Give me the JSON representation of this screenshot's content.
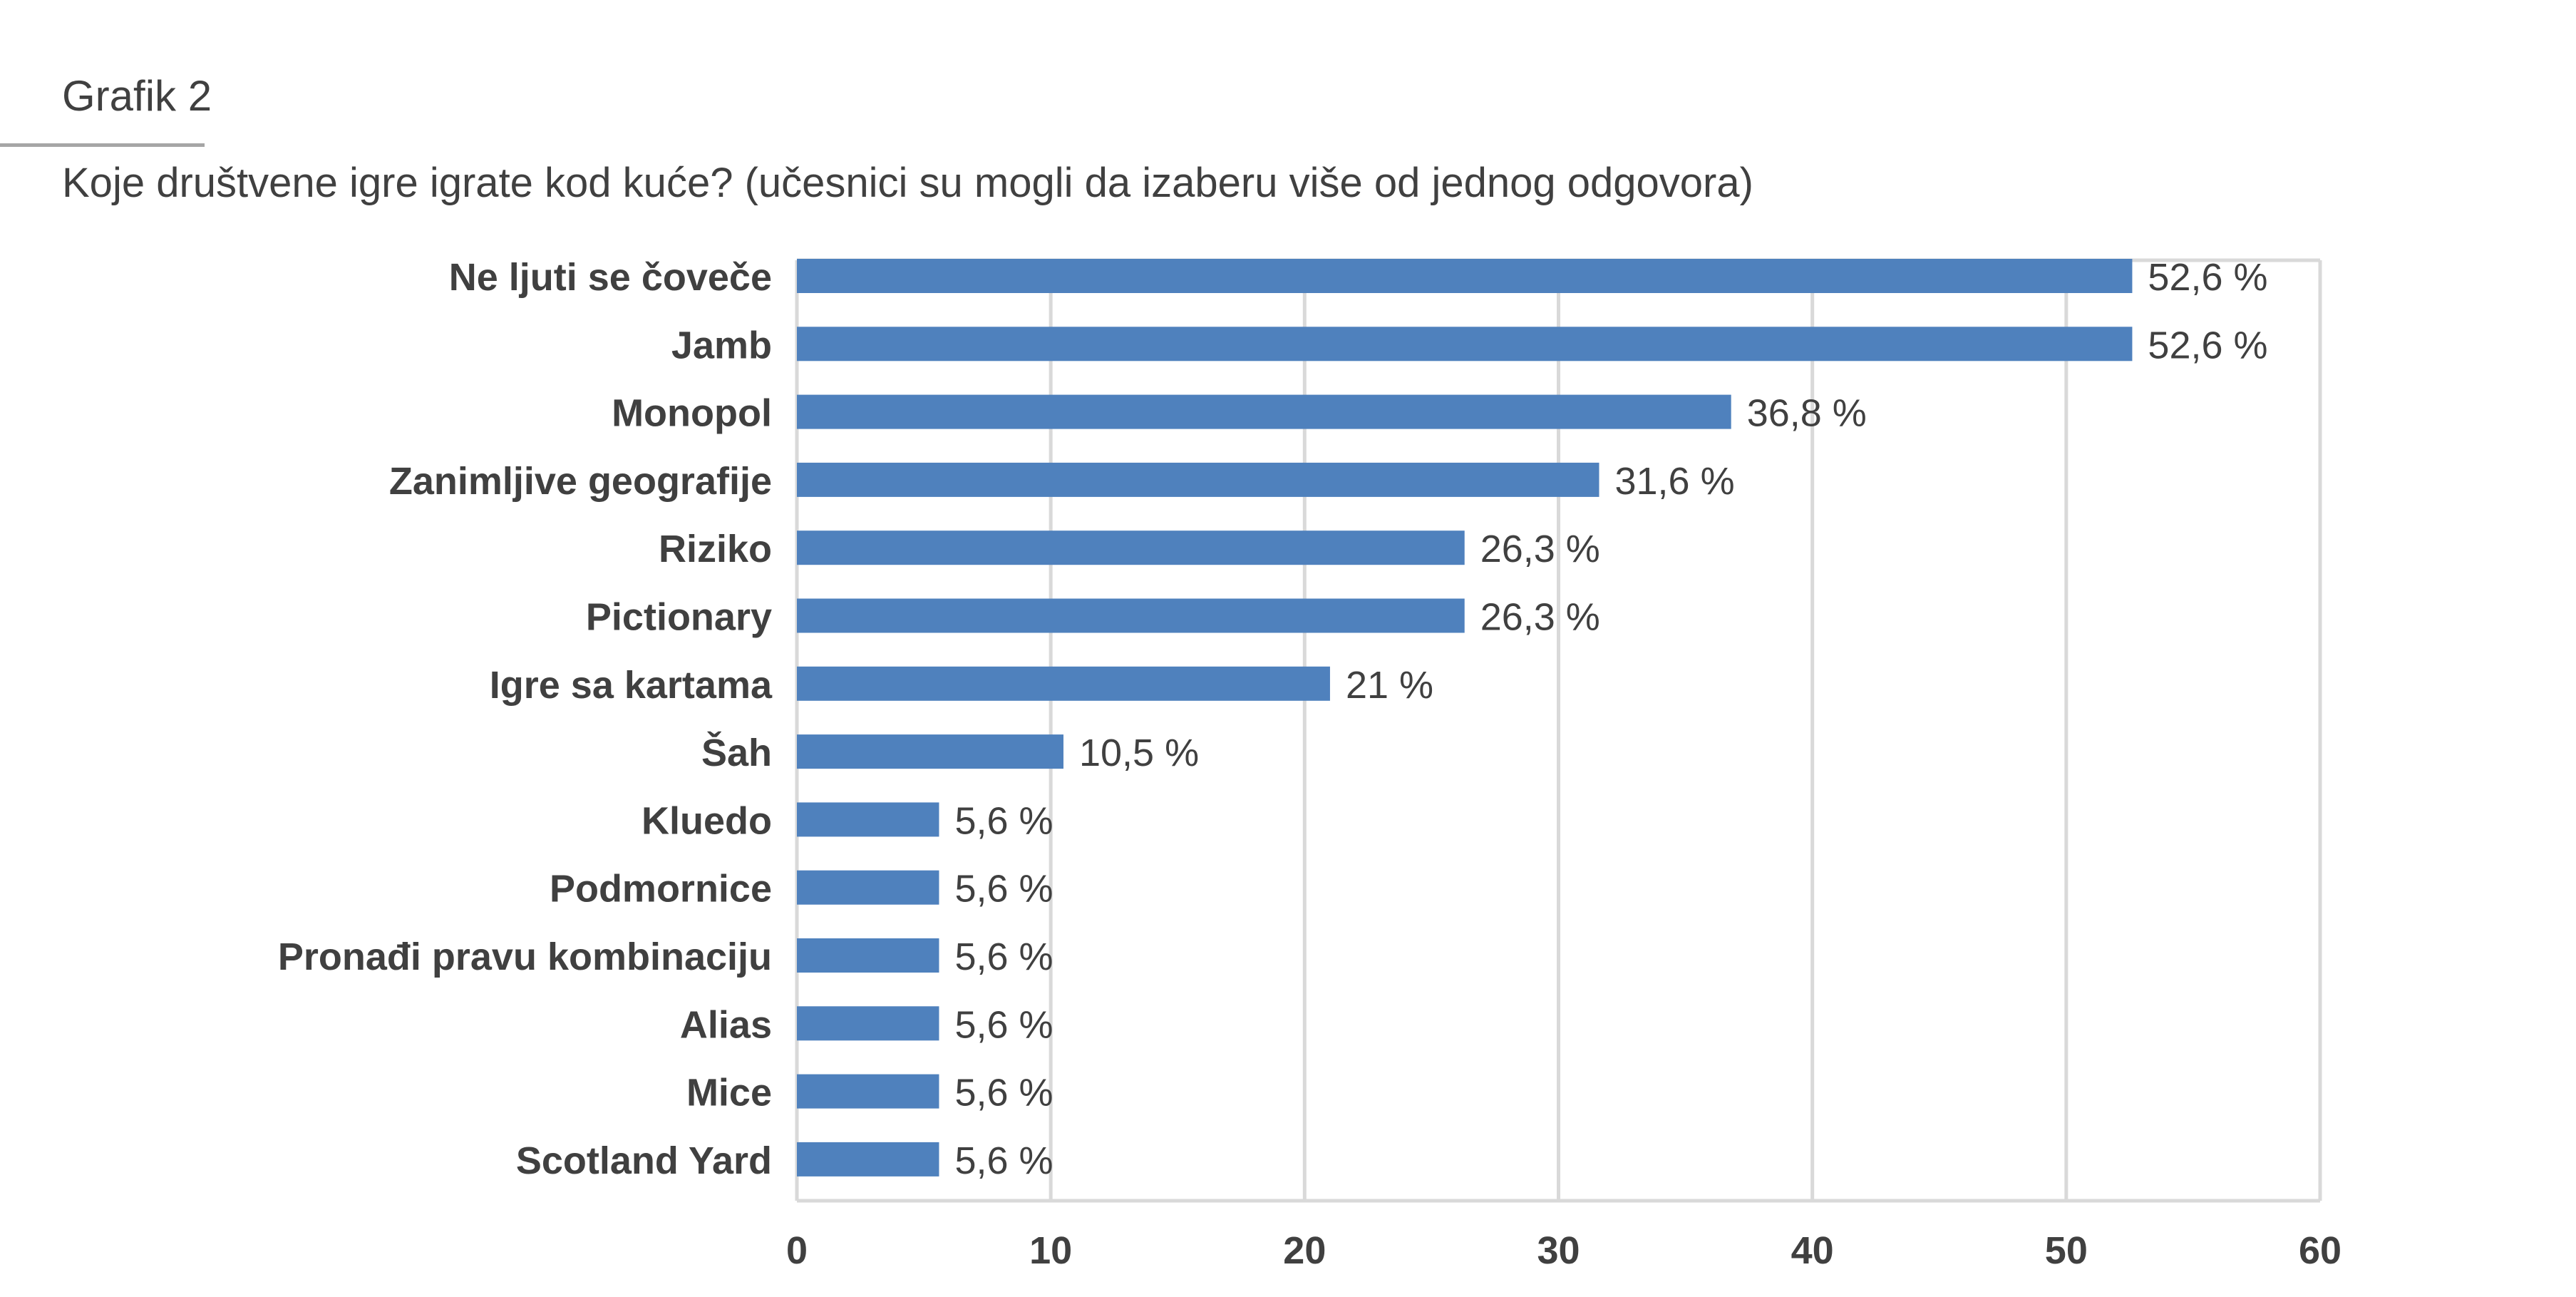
{
  "header": {
    "label": "Grafik 2",
    "question": "Koje društvene igre igrate kod kuće? (učesnici su mogli da izaberu više od jednog odgovora)"
  },
  "chart_data": {
    "type": "bar",
    "orientation": "horizontal",
    "categories": [
      "Ne ljuti se čoveče",
      "Jamb",
      "Monopol",
      "Zanimljive geografije",
      "Riziko",
      "Pictionary",
      "Igre sa kartama",
      "Šah",
      "Kluedo",
      "Podmornice",
      "Pronađi pravu kombinaciju",
      "Alias",
      "Mice",
      "Scotland Yard"
    ],
    "values": [
      52.6,
      52.6,
      36.8,
      31.6,
      26.3,
      26.3,
      21,
      10.5,
      5.6,
      5.6,
      5.6,
      5.6,
      5.6,
      5.6
    ],
    "data_labels": [
      "52,6 %",
      "52,6 %",
      "36,8 %",
      "31,6 %",
      "26,3 %",
      "26,3 %",
      "21 %",
      "10,5 %",
      "5,6 %",
      "5,6 %",
      "5,6 %",
      "5,6 %",
      "5,6 %",
      "5,6 %"
    ],
    "xlim": [
      0,
      60
    ],
    "xticks": [
      0,
      10,
      20,
      30,
      40,
      50,
      60
    ],
    "grid": true,
    "legend": "none",
    "bar_color": "#4f81bd",
    "grid_color": "#d9d9d9",
    "text_color": "#404040"
  }
}
